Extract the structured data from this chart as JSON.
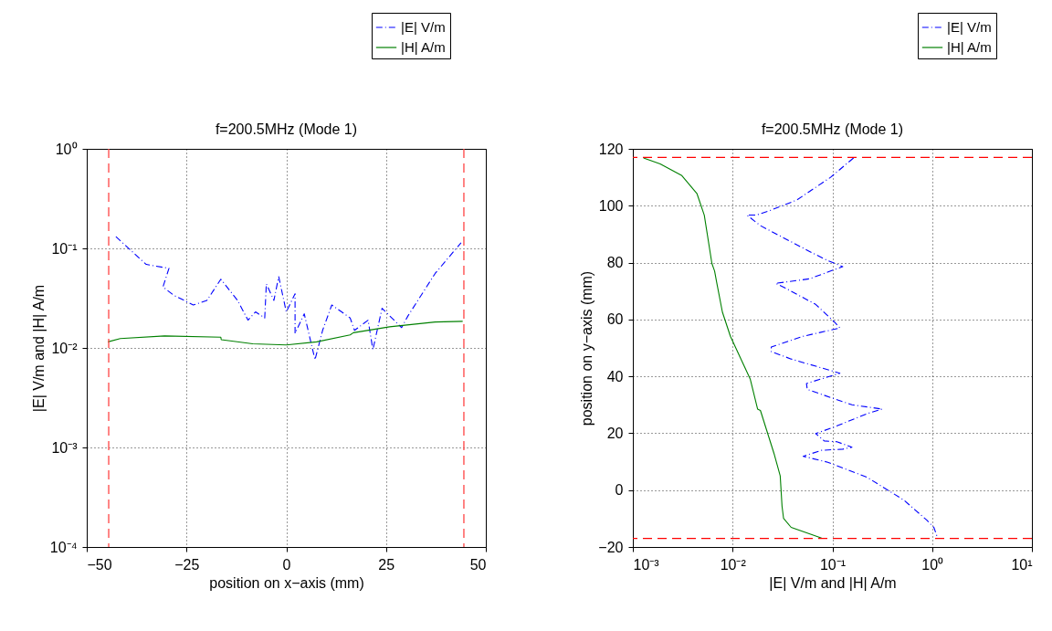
{
  "chart_data": [
    {
      "type": "line",
      "title": "f=200.5MHz (Mode 1)",
      "xlabel": "position on x−axis (mm)",
      "ylabel": "|E| V/m and |H| A/m",
      "xlim": [
        -50,
        50
      ],
      "xticks": [
        {
          "value": -50,
          "label": "−50"
        },
        {
          "value": -25,
          "label": "−25"
        },
        0,
        25,
        50
      ],
      "ylim": [
        0.0001,
        1
      ],
      "yticks": [
        {
          "value": 0.0001,
          "label": "10⁻⁴"
        },
        {
          "value": 0.001,
          "label": "10⁻³"
        },
        {
          "value": 0.01,
          "label": "10⁻²"
        },
        {
          "value": 0.1,
          "label": "10⁻¹"
        },
        {
          "value": 1,
          "label": "10⁰"
        }
      ],
      "log": "y",
      "grid": true,
      "legend": "top right",
      "ref_lines": [
        {
          "axis": "x",
          "value": -44.5,
          "color": "#ff4444",
          "line_style": "dashed"
        },
        {
          "axis": "x",
          "value": 44.5,
          "color": "#ff4444",
          "line_style": "dashed"
        }
      ],
      "series": [
        {
          "name": "|E| V/m",
          "color": "#0000ff",
          "line_style": "dashed",
          "x": [
            -42.7,
            -35.1,
            -29.4,
            -30.9,
            -28.3,
            -23.3,
            -19.9,
            -16.4,
            -12.2,
            -9.6,
            -7.7,
            -5.4,
            -5.0,
            -3.1,
            -1.9,
            0,
            2.2,
            2.2,
            4.5,
            7.2,
            9.1,
            11.4,
            16.0,
            17.1,
            20.5,
            21.7,
            24.0,
            28.9,
            30.5,
            37.3,
            43.8
          ],
          "values": [
            0.131,
            0.069,
            0.063,
            0.041,
            0.034,
            0.027,
            0.03,
            0.049,
            0.03,
            0.019,
            0.023,
            0.02,
            0.044,
            0.03,
            0.052,
            0.023,
            0.035,
            0.014,
            0.022,
            0.0076,
            0.015,
            0.027,
            0.02,
            0.015,
            0.019,
            0.0096,
            0.025,
            0.016,
            0.021,
            0.056,
            0.114
          ]
        },
        {
          "name": "|H| A/m",
          "color": "#008000",
          "line_style": "solid",
          "x": [
            -44.7,
            -41.6,
            -30.5,
            -16.4,
            -16.3,
            -8.4,
            0,
            7.6,
            16,
            16.8,
            25.9,
            37.3,
            44.2
          ],
          "values": [
            0.0115,
            0.0124,
            0.0132,
            0.0128,
            0.0121,
            0.011,
            0.0107,
            0.0115,
            0.0135,
            0.0142,
            0.0163,
            0.0182,
            0.0185
          ]
        }
      ]
    },
    {
      "type": "line",
      "title": "f=200.5MHz (Mode 1)",
      "xlabel": "|E| V/m and |H| A/m",
      "ylabel": "position on y−axis (mm)",
      "xlim": [
        0.001,
        10
      ],
      "xticks": [
        {
          "value": 0.001,
          "label": "10⁻³"
        },
        {
          "value": 0.01,
          "label": "10⁻²"
        },
        {
          "value": 0.1,
          "label": "10⁻¹"
        },
        {
          "value": 1,
          "label": "10⁰"
        },
        {
          "value": 10,
          "label": "10¹"
        }
      ],
      "ylim": [
        -20,
        120
      ],
      "yticks": [
        {
          "value": -20,
          "label": "−20"
        },
        0,
        20,
        40,
        60,
        80,
        100,
        120
      ],
      "log": "x",
      "grid": true,
      "legend": "top right",
      "ref_lines": [
        {
          "axis": "y",
          "value": 117,
          "color": "#ff0000",
          "line_style": "dashed"
        },
        {
          "axis": "y",
          "value": -17,
          "color": "#ff0000",
          "line_style": "dashed"
        }
      ],
      "series": [
        {
          "name": "|E| V/m",
          "color": "#0000ff",
          "line_style": "dashed",
          "x": [
            0.163,
            0.096,
            0.044,
            0.0236,
            0.0172,
            0.0139,
            0.019,
            0.063,
            0.09,
            0.127,
            0.059,
            0.027,
            0.0335,
            0.068,
            0.103,
            0.119,
            0.051,
            0.0244,
            0.0244,
            0.0386,
            0.119,
            0.055,
            0.056,
            0.157,
            0.316,
            0.223,
            0.103,
            0.068,
            0.083,
            0.111,
            0.157,
            0.127,
            0.078,
            0.051,
            0.09,
            0.223,
            0.52,
            0.88,
            1.04,
            1.12
          ],
          "values": [
            116.8,
            110,
            102,
            98.3,
            96.7,
            96.7,
            93,
            83.4,
            80.7,
            78.6,
            74.3,
            72.7,
            71.1,
            65.3,
            59.4,
            57,
            54.1,
            50.3,
            48.7,
            46.1,
            41.1,
            37.5,
            35.4,
            30,
            28.5,
            26.9,
            22.1,
            19.9,
            17.3,
            17,
            15.1,
            14.4,
            14,
            11.9,
            9.8,
            4.5,
            -3.5,
            -10.5,
            -13.1,
            -16.3
          ]
        },
        {
          "name": "|H| A/m",
          "color": "#008000",
          "line_style": "solid",
          "x": [
            0.00128,
            0.00188,
            0.0031,
            0.0044,
            0.0052,
            0.0062,
            0.0066,
            0.0069,
            0.0079,
            0.0095,
            0.015,
            0.0178,
            0.019,
            0.0262,
            0.03,
            0.0313,
            0.0324,
            0.0386,
            0.078
          ],
          "values": [
            116.8,
            114.7,
            110.6,
            104.2,
            96.7,
            79.7,
            77,
            73.3,
            62.6,
            54.1,
            39.1,
            28.5,
            28,
            12.5,
            5,
            -5.7,
            -9.9,
            -13.1,
            -16.9
          ]
        }
      ]
    }
  ]
}
